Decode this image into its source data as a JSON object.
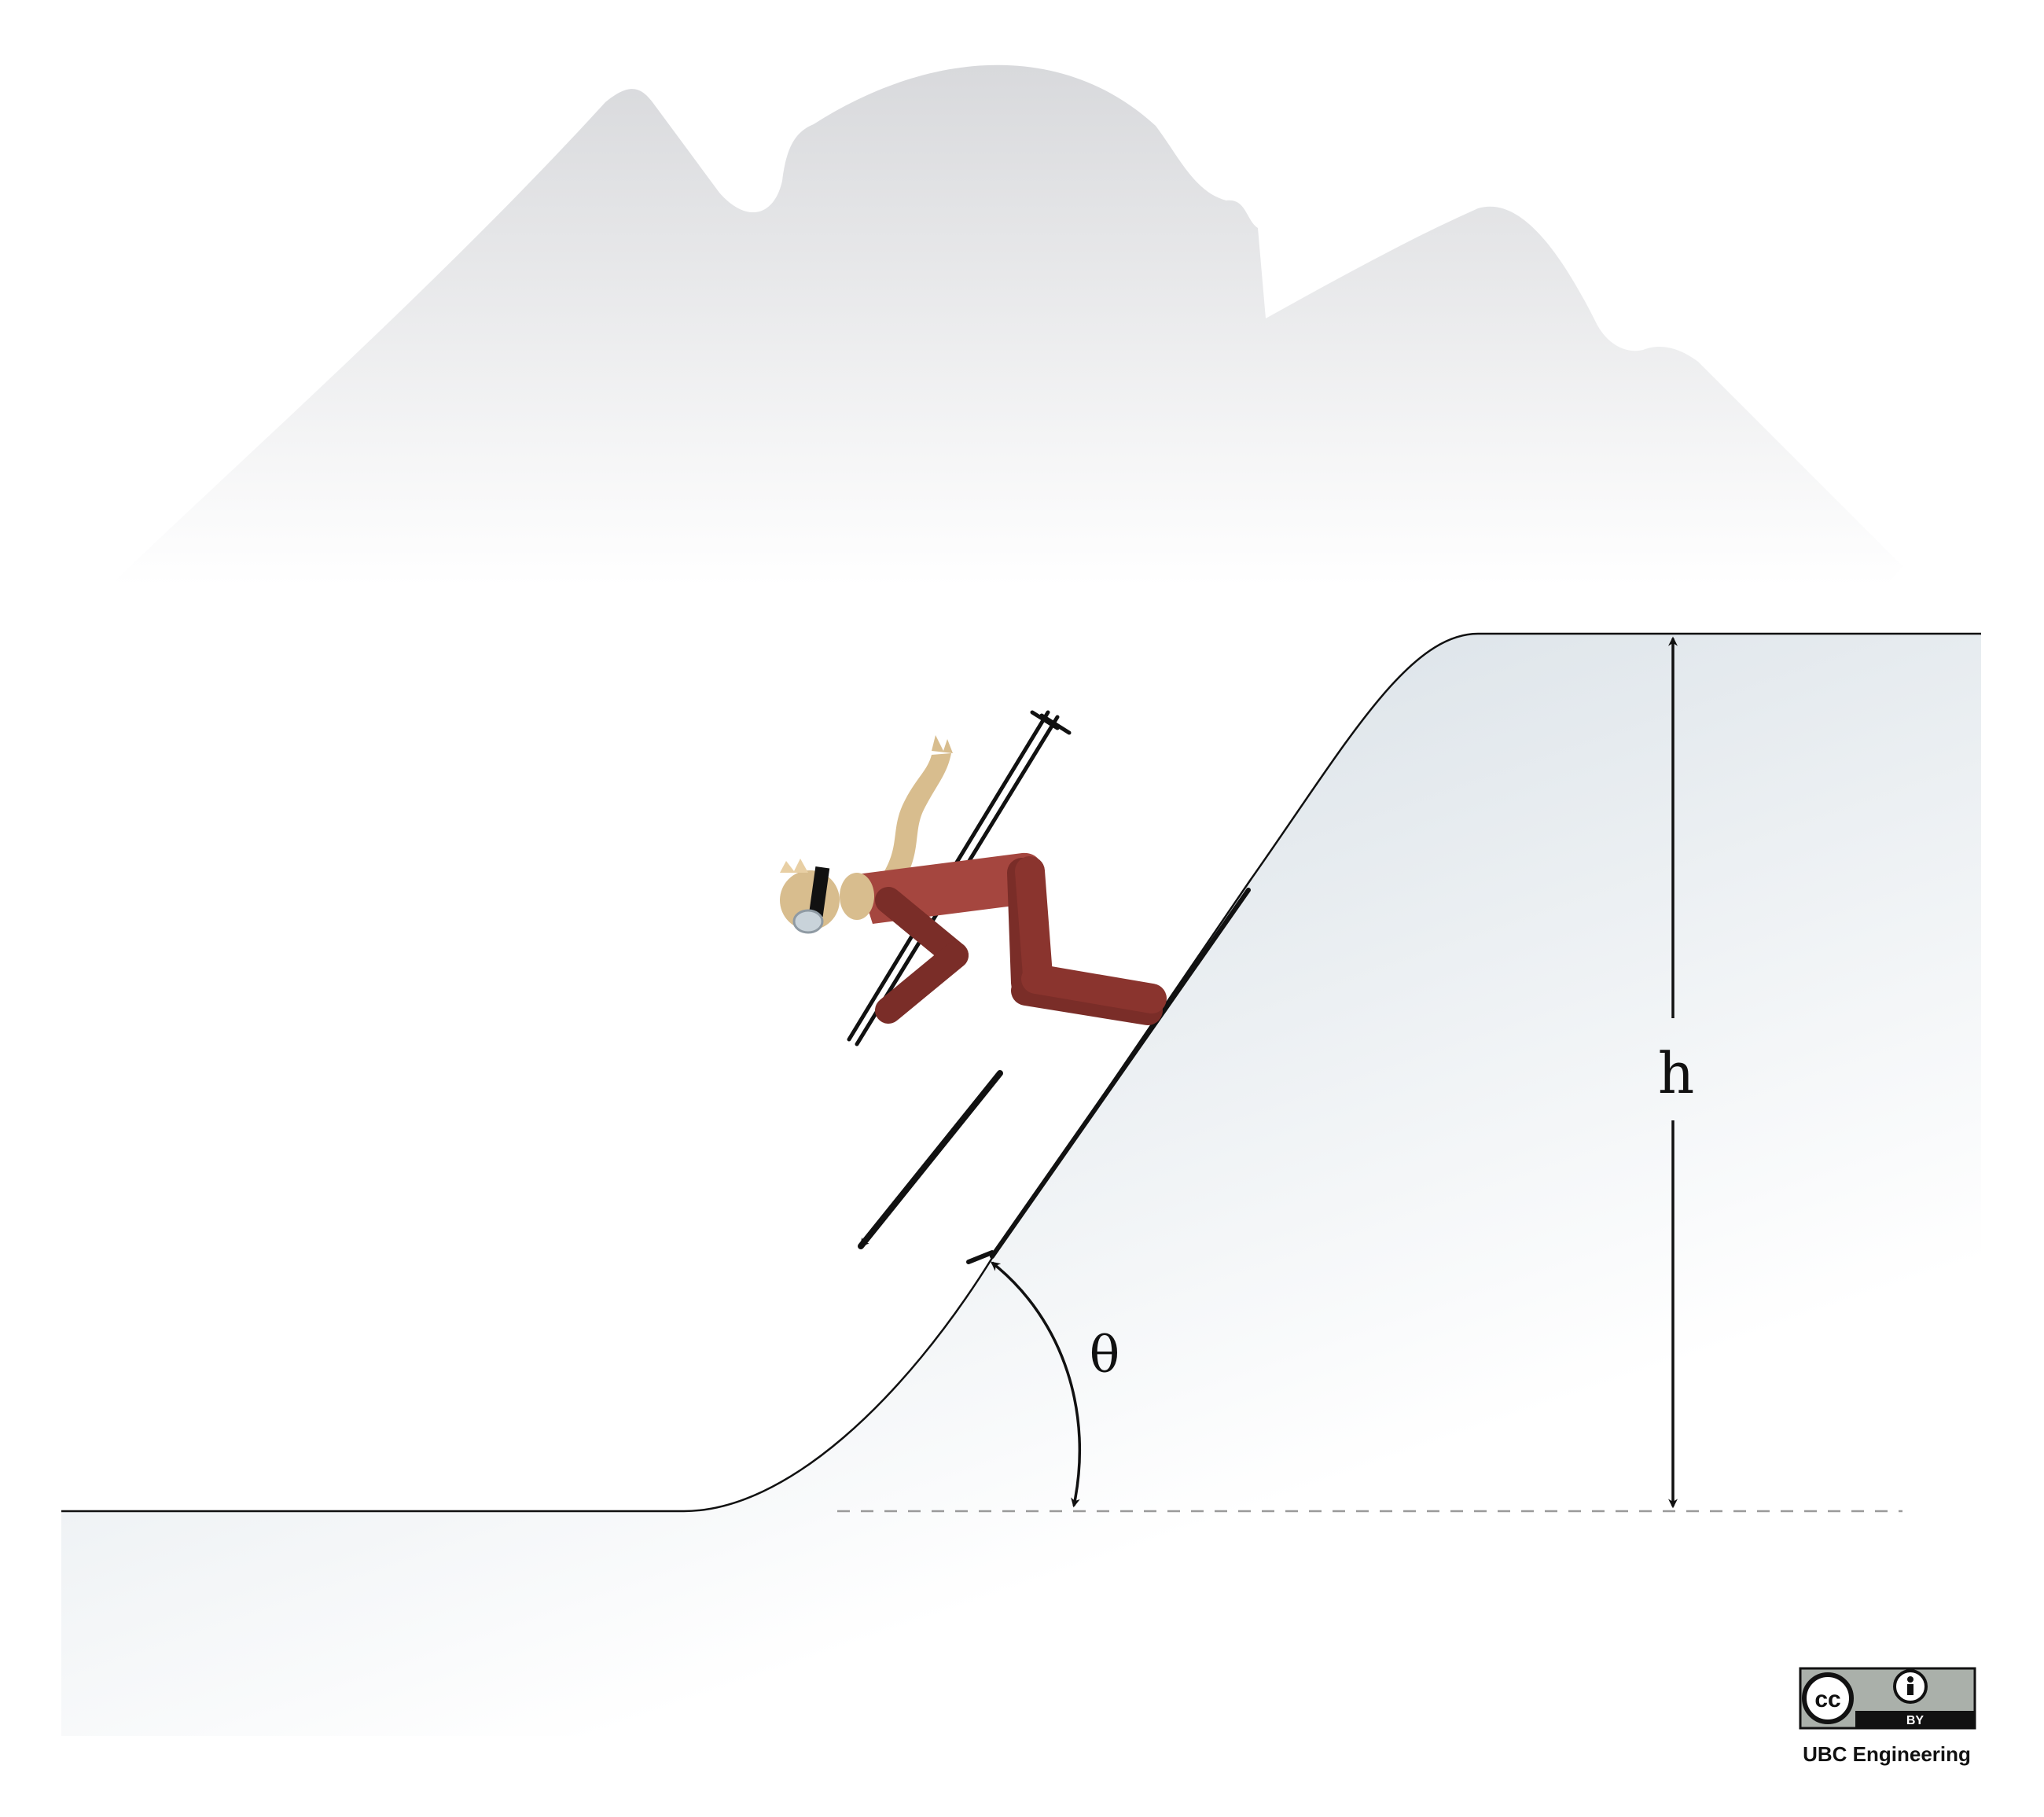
{
  "labels": {
    "height_symbol": "h",
    "angle_symbol": "θ"
  },
  "license": {
    "badge_cc": "cc",
    "badge_by": "BY",
    "credit": "UBC Engineering"
  },
  "colors": {
    "mountain": "#dcdde0",
    "slope_fill_top": "#d5dee4",
    "slope_fill_bottom": "#ffffff",
    "ski_suit": "#a5463f",
    "ski_suit_dark": "#7a2d28",
    "skin_scarf": "#d8bd8e",
    "outline": "#111111",
    "reference_line": "#9a9a9a"
  },
  "icons": {
    "motion_arrow": "arrow-down-left",
    "cc_logo": "creative-commons-icon",
    "by_logo": "attribution-person-icon"
  }
}
